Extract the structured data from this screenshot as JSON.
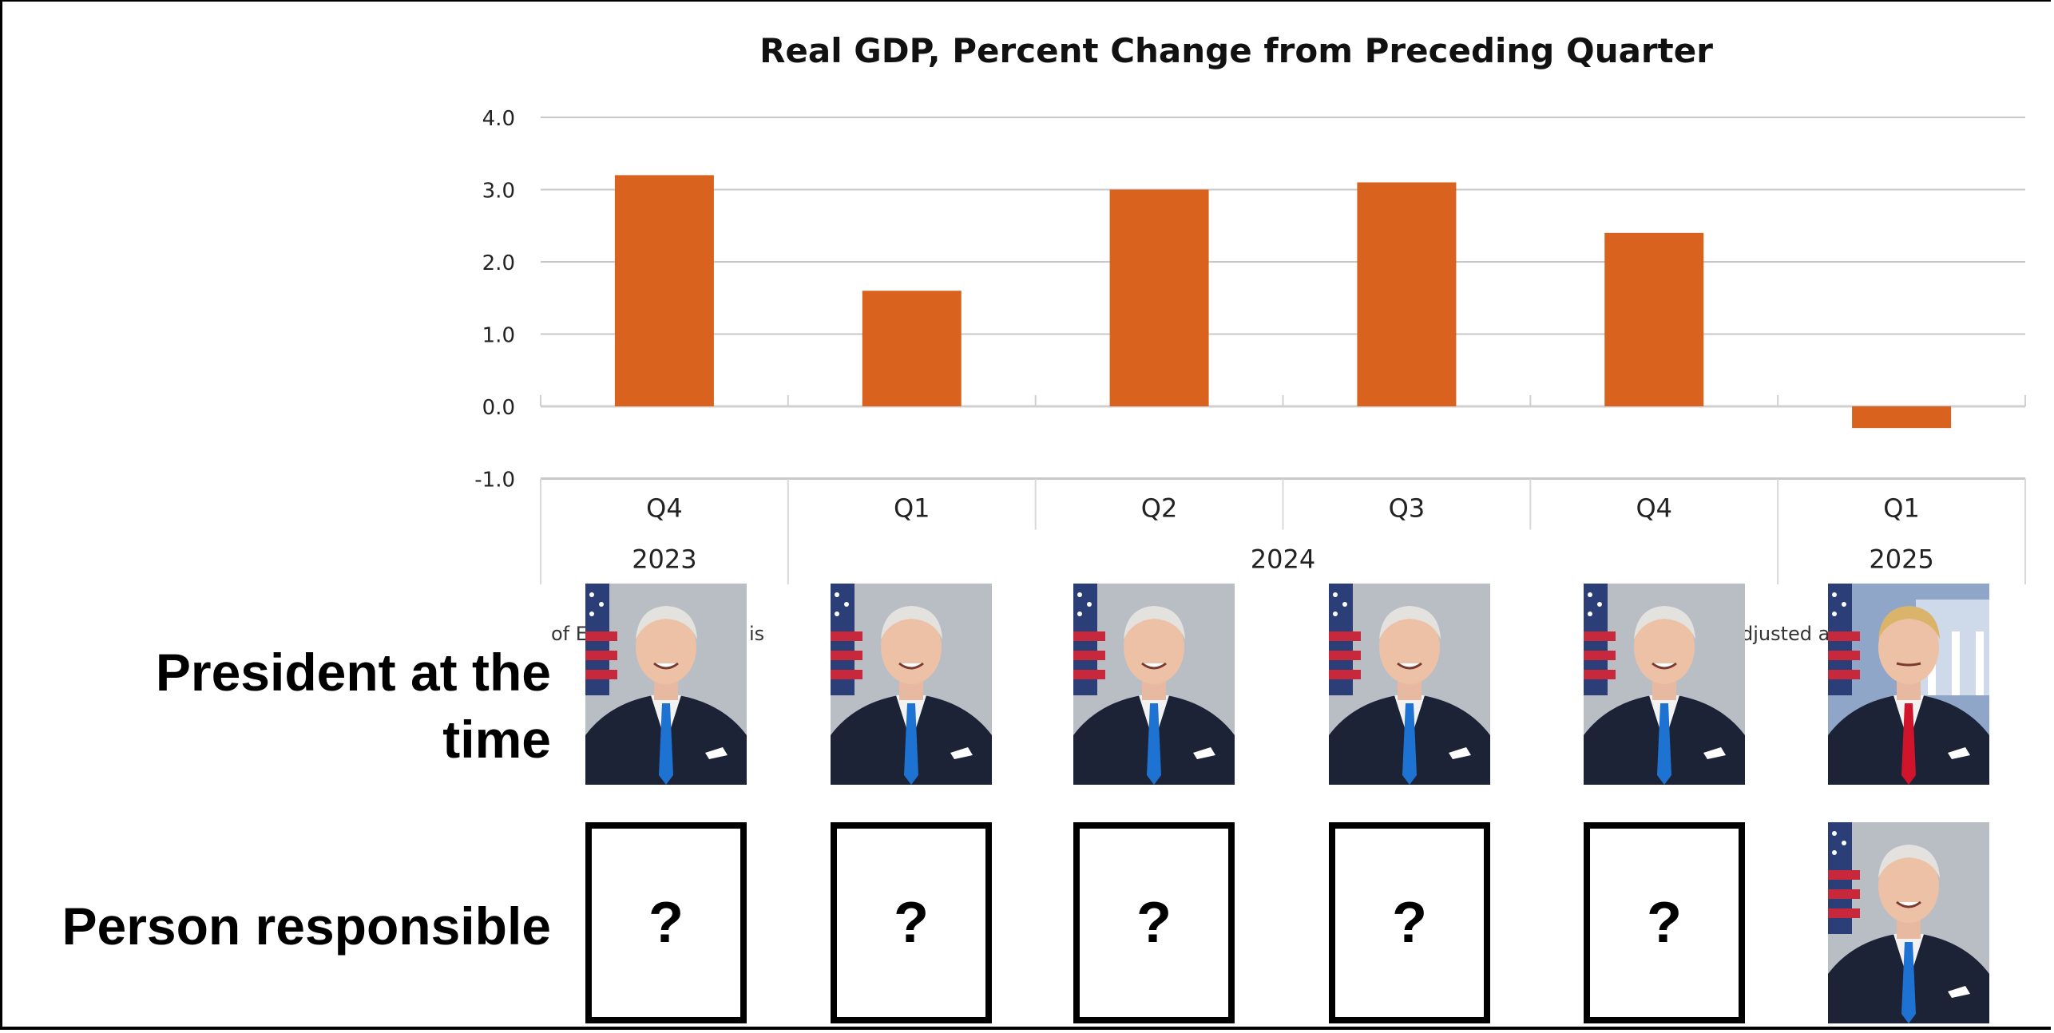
{
  "chart_data": {
    "type": "bar",
    "title": "Real GDP, Percent Change from Preceding Quarter",
    "categories": [
      "Q4",
      "Q1",
      "Q2",
      "Q3",
      "Q4",
      "Q1"
    ],
    "years": [
      {
        "label": "2023",
        "span": 1
      },
      {
        "label": "2024",
        "span": 4
      },
      {
        "label": "2025",
        "span": 1
      }
    ],
    "values": [
      3.2,
      1.6,
      3.0,
      3.1,
      2.4,
      -0.3
    ],
    "xlabel": "",
    "ylabel": "",
    "ylim": [
      -1.0,
      4.0
    ],
    "yticks": [
      "4.0",
      "3.0",
      "2.0",
      "1.0",
      "0.0",
      "-1.0"
    ],
    "ytick_values": [
      4,
      3,
      2,
      1,
      0,
      -1
    ],
    "grid": true,
    "bar_color": "#D9621F",
    "grid_color": "#C8C8C8"
  },
  "source_fragments": {
    "left": "of E",
    "left_tail": "is",
    "right": "djusted a"
  },
  "rows": {
    "president_label": "President at the time",
    "person_label": "Person responsible"
  },
  "presidents": [
    {
      "name": "biden",
      "tie_color": "#1E73D2"
    },
    {
      "name": "biden",
      "tie_color": "#1E73D2"
    },
    {
      "name": "biden",
      "tie_color": "#1E73D2"
    },
    {
      "name": "biden",
      "tie_color": "#1E73D2"
    },
    {
      "name": "biden",
      "tie_color": "#1E73D2"
    },
    {
      "name": "trump",
      "tie_color": "#D0142C"
    }
  ],
  "responsible": [
    {
      "type": "unknown",
      "text": "?"
    },
    {
      "type": "unknown",
      "text": "?"
    },
    {
      "type": "unknown",
      "text": "?"
    },
    {
      "type": "unknown",
      "text": "?"
    },
    {
      "type": "unknown",
      "text": "?"
    },
    {
      "type": "photo",
      "name": "biden",
      "tie_color": "#1E73D2"
    }
  ]
}
